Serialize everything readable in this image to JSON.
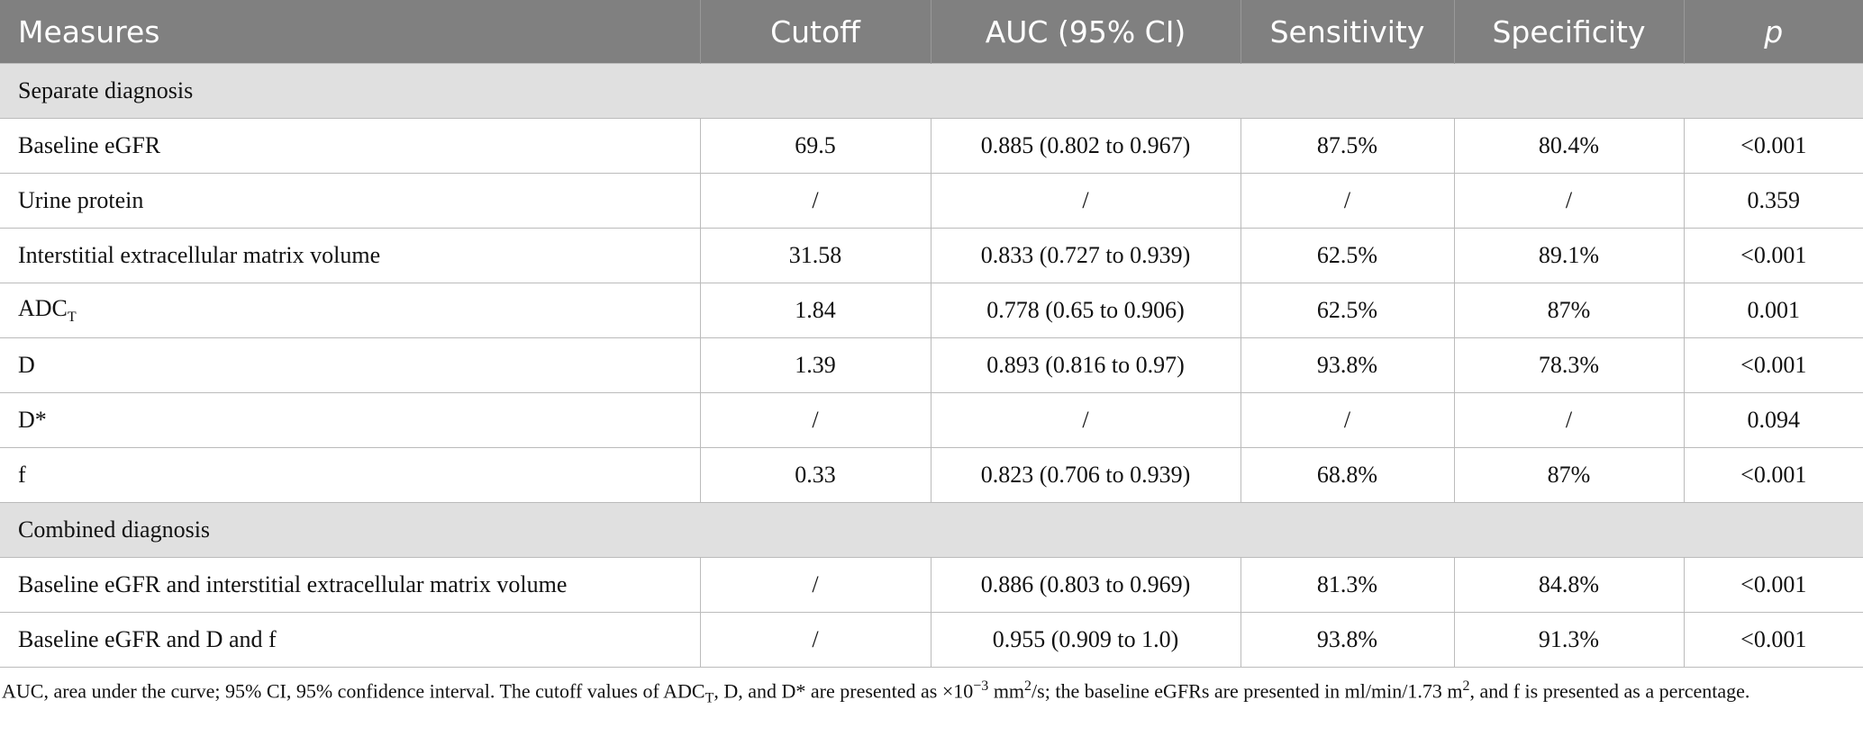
{
  "table": {
    "header": [
      "Measures",
      "Cutoff",
      "AUC (95% CI)",
      "Sensitivity",
      "Specificity",
      "p"
    ],
    "sections": [
      {
        "title": "Separate diagnosis",
        "rows": [
          [
            "Baseline eGFR",
            "69.5",
            "0.885 (0.802 to 0.967)",
            "87.5%",
            "80.4%",
            "<0.001"
          ],
          [
            "Urine protein",
            "/",
            "/",
            "/",
            "/",
            "0.359"
          ],
          [
            "Interstitial extracellular matrix volume",
            "31.58",
            "0.833 (0.727 to 0.939)",
            "62.5%",
            "89.1%",
            "<0.001"
          ],
          [
            {
              "text": "ADC",
              "sub": "T"
            },
            "1.84",
            "0.778 (0.65 to 0.906)",
            "62.5%",
            "87%",
            "0.001"
          ],
          [
            "D",
            "1.39",
            "0.893 (0.816 to 0.97)",
            "93.8%",
            "78.3%",
            "<0.001"
          ],
          [
            "D*",
            "/",
            "/",
            "/",
            "/",
            "0.094"
          ],
          [
            "f",
            "0.33",
            "0.823 (0.706 to 0.939)",
            "68.8%",
            "87%",
            "<0.001"
          ]
        ]
      },
      {
        "title": "Combined diagnosis",
        "rows": [
          [
            "Baseline eGFR and interstitial extracellular matrix volume",
            "/",
            "0.886 (0.803 to 0.969)",
            "81.3%",
            "84.8%",
            "<0.001"
          ],
          [
            "Baseline eGFR and D and f",
            "/",
            "0.955 (0.909 to 1.0)",
            "93.8%",
            "91.3%",
            "<0.001"
          ]
        ]
      }
    ]
  },
  "footnote": [
    "AUC, area under the curve; 95% CI, 95% confidence interval. The cutoff values of ADC",
    {
      "text": "T",
      "pos": "sub"
    },
    ", D, and D* are presented as ×10",
    {
      "text": "−3",
      "pos": "sup"
    },
    " mm",
    {
      "text": "2",
      "pos": "sup"
    },
    "/s; the baseline eGFRs are presented in ml/min/1.73 m",
    {
      "text": "2",
      "pos": "sup"
    },
    ", and f is presented as a percentage."
  ]
}
